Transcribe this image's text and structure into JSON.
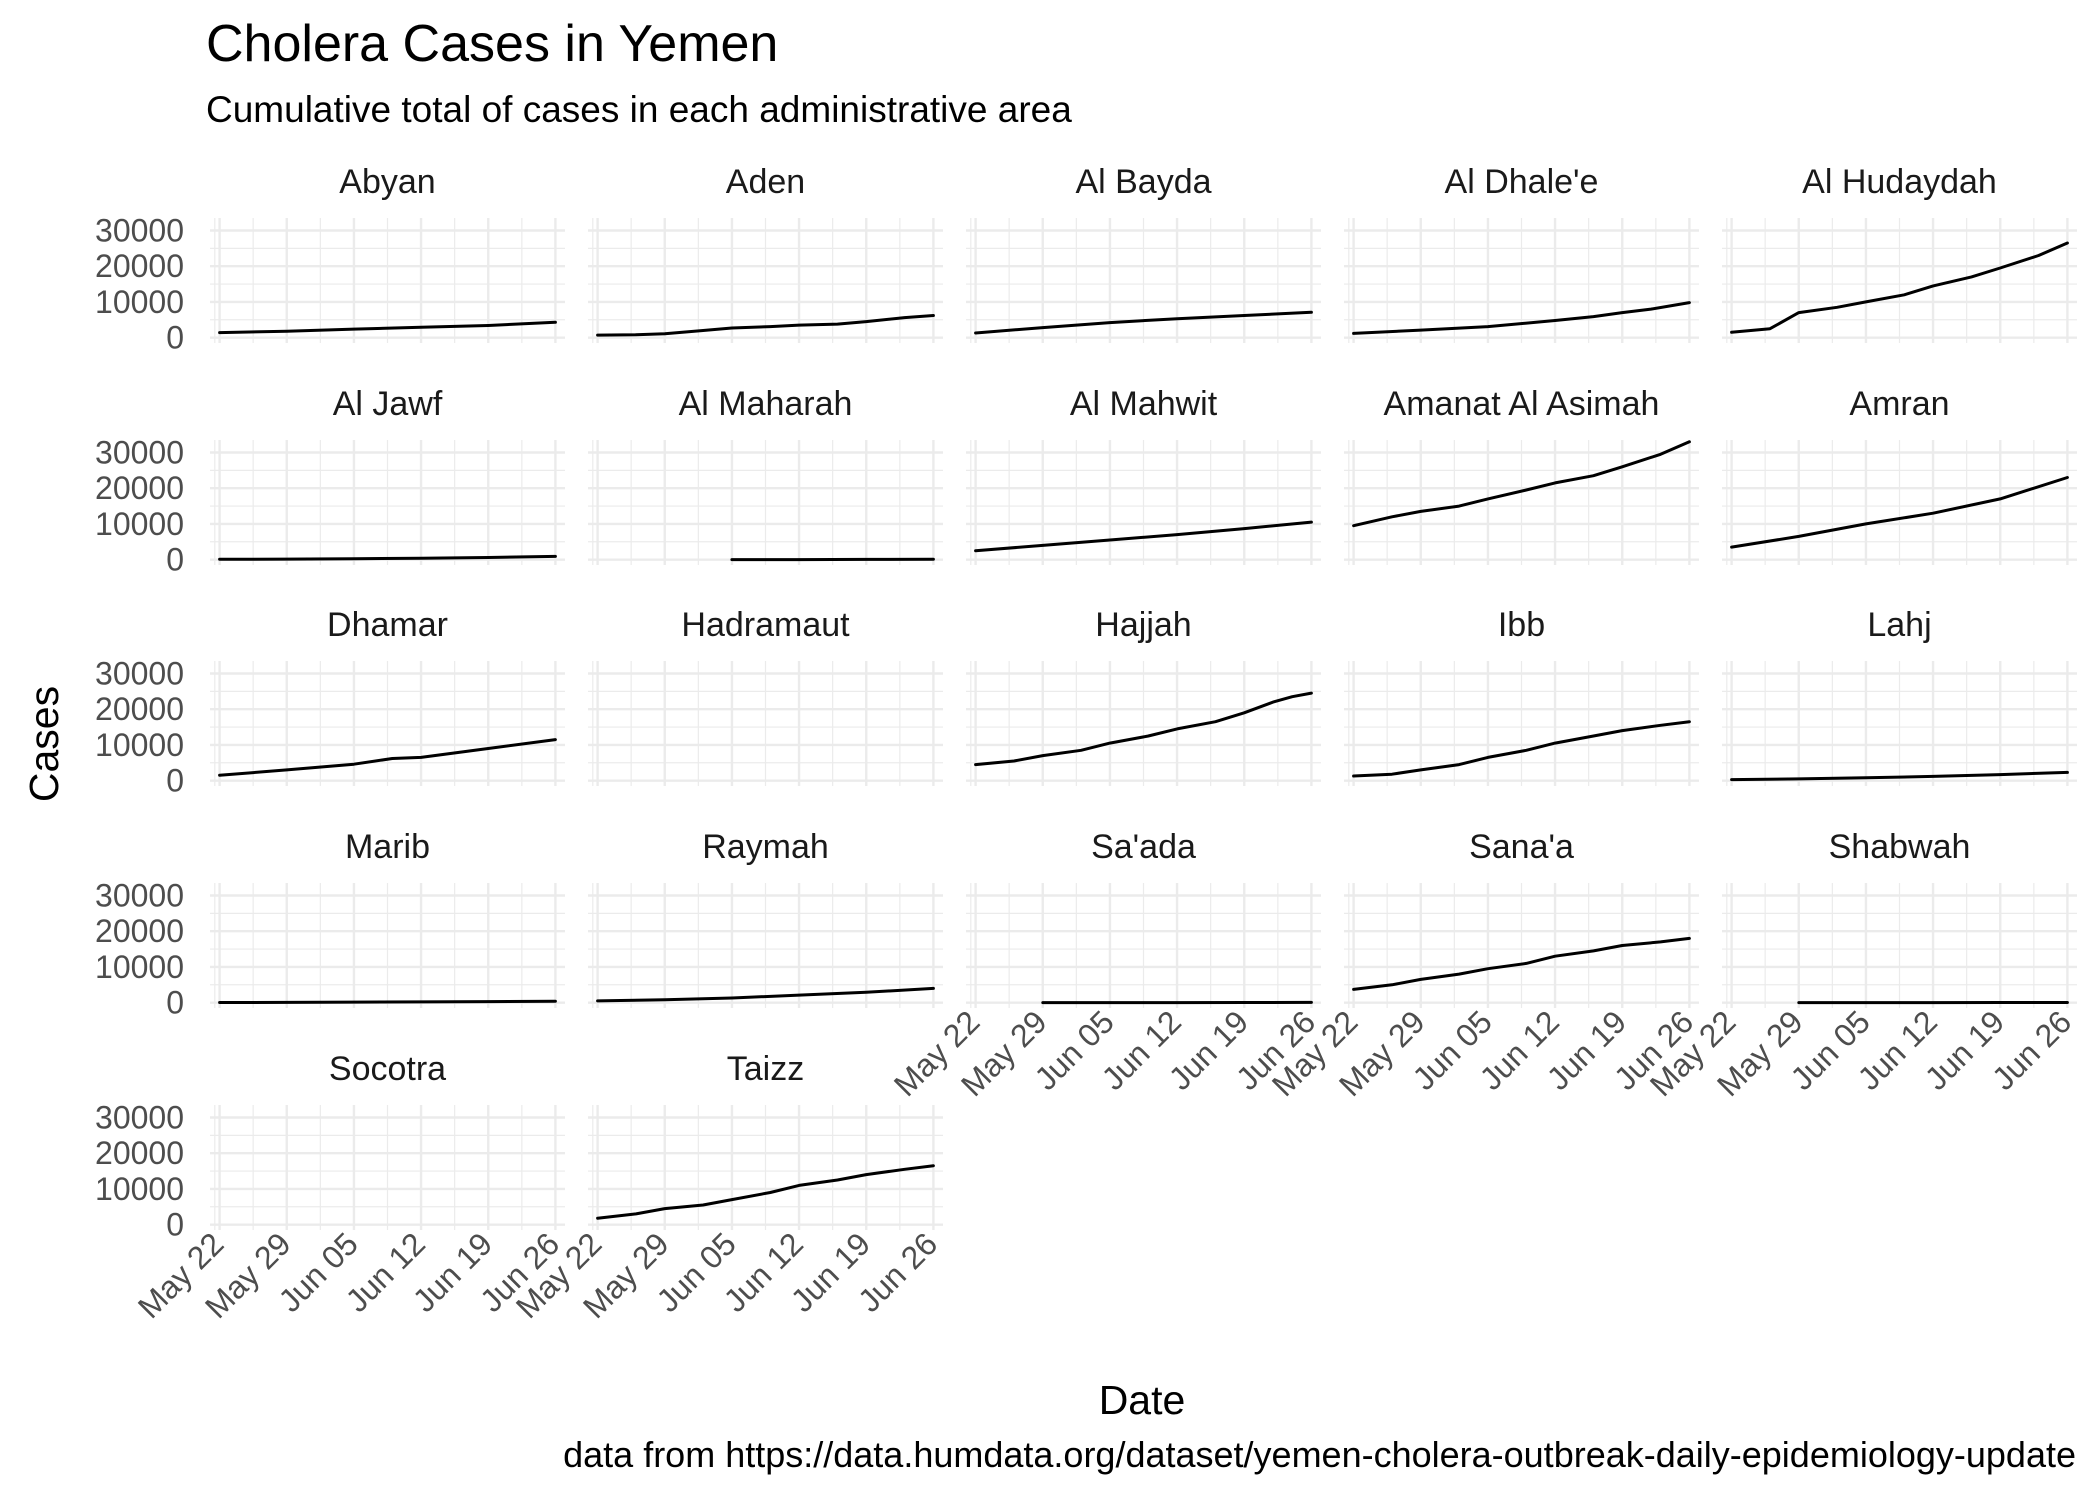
{
  "chart_data": {
    "type": "line",
    "title": "Cholera Cases in Yemen",
    "subtitle": "Cumulative total of cases in each administrative area",
    "xlabel": "Date",
    "ylabel": "Cases",
    "caption": "data from https://data.humdata.org/dataset/yemen-cholera-outbreak-daily-epidemiology-update",
    "x_tick_labels": [
      "May 22",
      "May 29",
      "Jun 05",
      "Jun 12",
      "Jun 19",
      "Jun 26"
    ],
    "y_tick_labels": [
      "0",
      "10000",
      "20000",
      "30000"
    ],
    "y_ticks": [
      0,
      10000,
      20000,
      30000
    ],
    "ylim": [
      -1500,
      33500
    ],
    "xlim": [
      "2017-05-21",
      "2017-06-27"
    ],
    "grid": true,
    "facet_layout": "wrap, 5 columns, free x axis text on bottom row of each column",
    "line_color": "#000000",
    "panels": [
      {
        "name": "Abyan",
        "x": [
          "2017-05-22",
          "2017-05-29",
          "2017-06-05",
          "2017-06-12",
          "2017-06-19",
          "2017-06-26"
        ],
        "y": [
          1400,
          1800,
          2400,
          2900,
          3400,
          4300
        ]
      },
      {
        "name": "Aden",
        "x": [
          "2017-05-22",
          "2017-05-26",
          "2017-05-29",
          "2017-06-02",
          "2017-06-05",
          "2017-06-09",
          "2017-06-12",
          "2017-06-16",
          "2017-06-19",
          "2017-06-23",
          "2017-06-26"
        ],
        "y": [
          700,
          800,
          1100,
          2000,
          2700,
          3100,
          3500,
          3800,
          4500,
          5600,
          6200
        ]
      },
      {
        "name": "Al Bayda",
        "x": [
          "2017-05-22",
          "2017-05-29",
          "2017-06-05",
          "2017-06-12",
          "2017-06-19",
          "2017-06-26"
        ],
        "y": [
          1300,
          2800,
          4200,
          5300,
          6200,
          7100
        ]
      },
      {
        "name": "Al Dhale'e",
        "x": [
          "2017-05-22",
          "2017-05-29",
          "2017-06-05",
          "2017-06-12",
          "2017-06-16",
          "2017-06-19",
          "2017-06-22",
          "2017-06-26"
        ],
        "y": [
          1200,
          2100,
          3100,
          4800,
          5900,
          7000,
          8000,
          9800
        ]
      },
      {
        "name": "Al Hudaydah",
        "x": [
          "2017-05-22",
          "2017-05-26",
          "2017-05-29",
          "2017-06-02",
          "2017-06-05",
          "2017-06-09",
          "2017-06-12",
          "2017-06-16",
          "2017-06-19",
          "2017-06-23",
          "2017-06-26"
        ],
        "y": [
          1500,
          2500,
          7000,
          8500,
          10000,
          12000,
          14500,
          17000,
          19500,
          23000,
          26500
        ]
      },
      {
        "name": "Al Jawf",
        "x": [
          "2017-05-22",
          "2017-05-29",
          "2017-06-05",
          "2017-06-12",
          "2017-06-19",
          "2017-06-26"
        ],
        "y": [
          100,
          150,
          250,
          400,
          600,
          900
        ]
      },
      {
        "name": "Al Maharah",
        "x": [
          "2017-06-05",
          "2017-06-12",
          "2017-06-19",
          "2017-06-26"
        ],
        "y": [
          0,
          20,
          60,
          100
        ]
      },
      {
        "name": "Al Mahwit",
        "x": [
          "2017-05-22",
          "2017-05-29",
          "2017-06-05",
          "2017-06-12",
          "2017-06-19",
          "2017-06-26"
        ],
        "y": [
          2500,
          4000,
          5500,
          7000,
          8700,
          10500
        ]
      },
      {
        "name": "Amanat Al Asimah",
        "x": [
          "2017-05-22",
          "2017-05-26",
          "2017-05-29",
          "2017-06-02",
          "2017-06-05",
          "2017-06-09",
          "2017-06-12",
          "2017-06-16",
          "2017-06-19",
          "2017-06-23",
          "2017-06-26"
        ],
        "y": [
          9500,
          12000,
          13500,
          15000,
          17000,
          19500,
          21500,
          23500,
          26000,
          29500,
          33000
        ]
      },
      {
        "name": "Amran",
        "x": [
          "2017-05-22",
          "2017-05-29",
          "2017-06-05",
          "2017-06-12",
          "2017-06-19",
          "2017-06-26"
        ],
        "y": [
          3500,
          6500,
          10000,
          13000,
          17000,
          23000
        ]
      },
      {
        "name": "Dhamar",
        "x": [
          "2017-05-22",
          "2017-05-29",
          "2017-06-05",
          "2017-06-09",
          "2017-06-12",
          "2017-06-19",
          "2017-06-26"
        ],
        "y": [
          1500,
          3000,
          4600,
          6200,
          6500,
          9000,
          11500
        ]
      },
      {
        "name": "Hadramaut",
        "x": [],
        "y": []
      },
      {
        "name": "Hajjah",
        "x": [
          "2017-05-22",
          "2017-05-26",
          "2017-05-29",
          "2017-06-02",
          "2017-06-05",
          "2017-06-09",
          "2017-06-12",
          "2017-06-16",
          "2017-06-19",
          "2017-06-22",
          "2017-06-24",
          "2017-06-26"
        ],
        "y": [
          4500,
          5500,
          7000,
          8500,
          10500,
          12500,
          14500,
          16500,
          19000,
          22000,
          23500,
          24500
        ]
      },
      {
        "name": "Ibb",
        "x": [
          "2017-05-22",
          "2017-05-26",
          "2017-05-29",
          "2017-06-02",
          "2017-06-05",
          "2017-06-09",
          "2017-06-12",
          "2017-06-16",
          "2017-06-19",
          "2017-06-23",
          "2017-06-26"
        ],
        "y": [
          1300,
          1800,
          3000,
          4500,
          6500,
          8500,
          10500,
          12500,
          14000,
          15500,
          16500
        ]
      },
      {
        "name": "Lahj",
        "x": [
          "2017-05-22",
          "2017-05-29",
          "2017-06-05",
          "2017-06-12",
          "2017-06-19",
          "2017-06-26"
        ],
        "y": [
          300,
          500,
          800,
          1200,
          1700,
          2300
        ]
      },
      {
        "name": "Marib",
        "x": [
          "2017-05-22",
          "2017-05-29",
          "2017-06-05",
          "2017-06-12",
          "2017-06-19",
          "2017-06-26"
        ],
        "y": [
          50,
          80,
          150,
          220,
          300,
          400
        ]
      },
      {
        "name": "Raymah",
        "x": [
          "2017-05-22",
          "2017-05-29",
          "2017-06-05",
          "2017-06-12",
          "2017-06-19",
          "2017-06-26"
        ],
        "y": [
          500,
          800,
          1300,
          2100,
          2900,
          4000
        ]
      },
      {
        "name": "Sa'ada",
        "x": [
          "2017-05-29",
          "2017-06-05",
          "2017-06-12",
          "2017-06-19",
          "2017-06-26"
        ],
        "y": [
          0,
          10,
          20,
          40,
          60
        ]
      },
      {
        "name": "Sana'a",
        "x": [
          "2017-05-22",
          "2017-05-26",
          "2017-05-29",
          "2017-06-02",
          "2017-06-05",
          "2017-06-09",
          "2017-06-12",
          "2017-06-16",
          "2017-06-19",
          "2017-06-23",
          "2017-06-26"
        ],
        "y": [
          3700,
          5000,
          6500,
          8000,
          9500,
          11000,
          13000,
          14500,
          16000,
          17000,
          18000
        ]
      },
      {
        "name": "Shabwah",
        "x": [
          "2017-05-29",
          "2017-06-05",
          "2017-06-12",
          "2017-06-19",
          "2017-06-26"
        ],
        "y": [
          0,
          10,
          20,
          30,
          50
        ]
      },
      {
        "name": "Socotra",
        "x": [],
        "y": []
      },
      {
        "name": "Taizz",
        "x": [
          "2017-05-22",
          "2017-05-26",
          "2017-05-29",
          "2017-06-02",
          "2017-06-05",
          "2017-06-09",
          "2017-06-12",
          "2017-06-16",
          "2017-06-19",
          "2017-06-23",
          "2017-06-26"
        ],
        "y": [
          1800,
          3000,
          4500,
          5500,
          7000,
          9000,
          11000,
          12500,
          14000,
          15500,
          16500
        ]
      }
    ]
  }
}
